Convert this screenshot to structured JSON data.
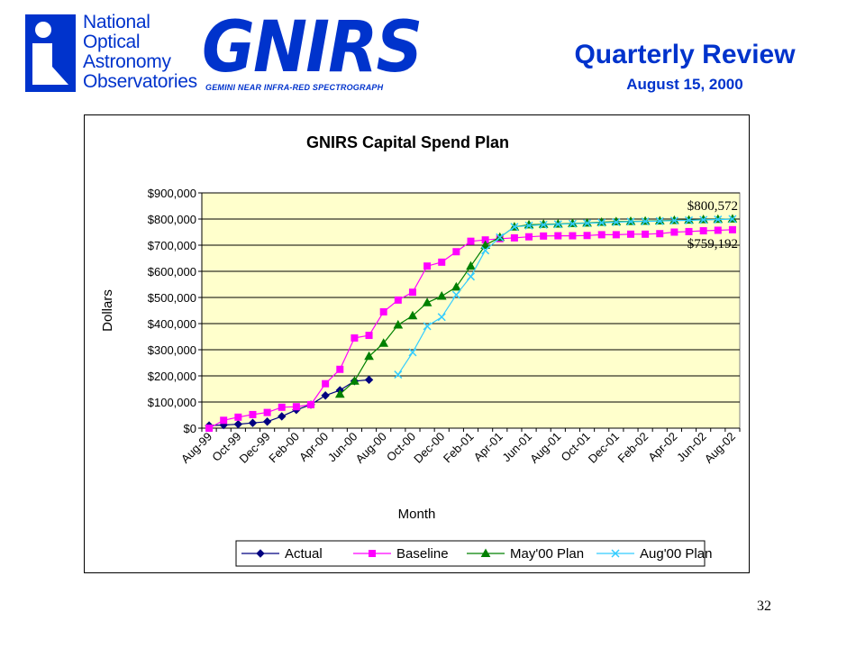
{
  "header": {
    "org_lines": [
      "National",
      "Optical",
      "Astronomy",
      "Observatories"
    ],
    "logo_word": "GNIRS",
    "logo_subtitle": "GEMINI NEAR INFRA-RED SPECTROGRAPH",
    "title": "Quarterly Review",
    "date": "August 15, 2000",
    "brand_color": "#0033cc"
  },
  "page_number": "32",
  "chart_data": {
    "type": "line",
    "title": "GNIRS Capital Spend Plan",
    "xlabel": "Month",
    "ylabel": "Dollars",
    "ylim": [
      0,
      900000
    ],
    "yticks": [
      "$0",
      "$100,000",
      "$200,000",
      "$300,000",
      "$400,000",
      "$500,000",
      "$600,000",
      "$700,000",
      "$800,000",
      "$900,000"
    ],
    "grid": "horizontal",
    "plot_background": "#ffffcc",
    "legend_position": "bottom",
    "categories": [
      "Aug-99",
      "Sep-99",
      "Oct-99",
      "Nov-99",
      "Dec-99",
      "Jan-00",
      "Feb-00",
      "Mar-00",
      "Apr-00",
      "May-00",
      "Jun-00",
      "Jul-00",
      "Aug-00",
      "Sep-00",
      "Oct-00",
      "Nov-00",
      "Dec-00",
      "Jan-01",
      "Feb-01",
      "Mar-01",
      "Apr-01",
      "May-01",
      "Jun-01",
      "Jul-01",
      "Aug-01",
      "Sep-01",
      "Oct-01",
      "Nov-01",
      "Dec-01",
      "Jan-02",
      "Feb-02",
      "Mar-02",
      "Apr-02",
      "May-02",
      "Jun-02",
      "Jul-02",
      "Aug-02"
    ],
    "x_tick_labels": [
      "Aug-99",
      "Oct-99",
      "Dec-99",
      "Feb-00",
      "Apr-00",
      "Jun-00",
      "Aug-00",
      "Oct-00",
      "Dec-00",
      "Feb-01",
      "Apr-01",
      "Jun-01",
      "Aug-01",
      "Oct-01",
      "Dec-01",
      "Feb-02",
      "Apr-02",
      "Jun-02",
      "Aug-02"
    ],
    "series": [
      {
        "name": "Actual",
        "color": "#000080",
        "marker": "diamond",
        "values": [
          10000,
          12000,
          15000,
          20000,
          25000,
          45000,
          70000,
          90000,
          125000,
          145000,
          180000,
          185000,
          null,
          null,
          null,
          null,
          null,
          null,
          null,
          null,
          null,
          null,
          null,
          null,
          null,
          null,
          null,
          null,
          null,
          null,
          null,
          null,
          null,
          null,
          null,
          null,
          null
        ]
      },
      {
        "name": "Baseline",
        "color": "#ff00ff",
        "marker": "square",
        "values": [
          0,
          30000,
          42000,
          52000,
          60000,
          80000,
          82000,
          90000,
          170000,
          225000,
          345000,
          355000,
          445000,
          490000,
          520000,
          620000,
          635000,
          675000,
          715000,
          720000,
          725000,
          728000,
          732000,
          735000,
          736000,
          736000,
          737000,
          740000,
          740000,
          742000,
          742000,
          744000,
          750000,
          752000,
          755000,
          757000,
          759192
        ]
      },
      {
        "name": "May'00 Plan",
        "color": "#008000",
        "marker": "triangle",
        "values": [
          null,
          null,
          null,
          null,
          null,
          null,
          null,
          null,
          null,
          130000,
          180000,
          275000,
          325000,
          395000,
          430000,
          480000,
          505000,
          540000,
          620000,
          700000,
          730000,
          770000,
          778000,
          780000,
          781000,
          783000,
          785000,
          788000,
          790000,
          791000,
          792000,
          793000,
          795000,
          796000,
          798000,
          799000,
          800572
        ]
      },
      {
        "name": "Aug'00 Plan",
        "color": "#33ccff",
        "marker": "x",
        "values": [
          null,
          null,
          null,
          null,
          null,
          null,
          null,
          null,
          null,
          null,
          null,
          null,
          null,
          205000,
          290000,
          390000,
          425000,
          510000,
          580000,
          680000,
          730000,
          770000,
          775000,
          778000,
          780000,
          782000,
          784000,
          786000,
          788000,
          790000,
          791000,
          792000,
          794000,
          795000,
          797000,
          798000,
          800000
        ]
      }
    ],
    "annotations": [
      {
        "text": "$800,572",
        "series": "May'00 Plan",
        "value": 800572
      },
      {
        "text": "$759,192",
        "series": "Baseline",
        "value": 759192
      }
    ]
  }
}
